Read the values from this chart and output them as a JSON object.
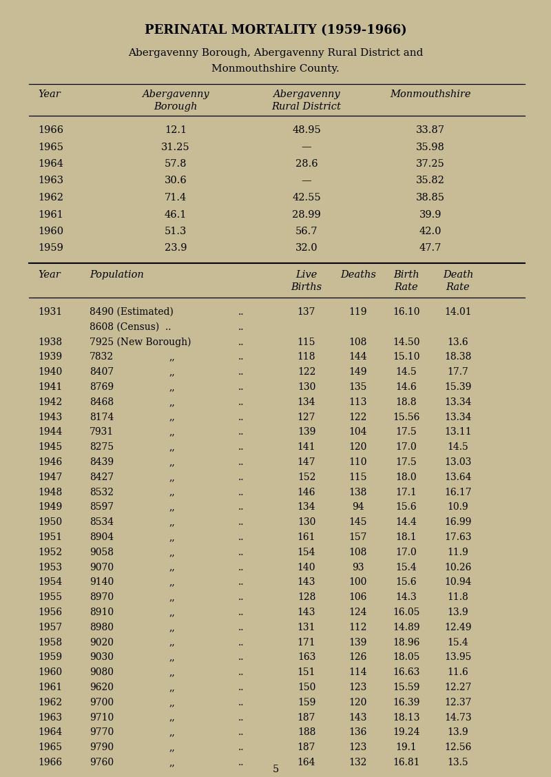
{
  "title": "PERINATAL MORTALITY (1959-1966)",
  "subtitle1": "Abergavenny Borough, Abergavenny Rural District and",
  "subtitle2": "Monmouthshire County.",
  "bg_color": "#c8bc96",
  "table1_rows": [
    [
      "1966",
      "12.1",
      "48.95",
      "33.87"
    ],
    [
      "1965",
      "31.25",
      "—",
      "35.98"
    ],
    [
      "1964",
      "57.8",
      "28.6",
      "37.25"
    ],
    [
      "1963",
      "30.6",
      "—",
      "35.82"
    ],
    [
      "1962",
      "71.4",
      "42.55",
      "38.85"
    ],
    [
      "1961",
      "46.1",
      "28.99",
      "39.9"
    ],
    [
      "1960",
      "51.3",
      "56.7",
      "42.0"
    ],
    [
      "1959",
      "23.9",
      "32.0",
      "47.7"
    ]
  ],
  "table2_rows": [
    [
      "1931",
      "8490 (Estimated)",
      "  ..",
      "137",
      "119",
      "16.10",
      "14.01"
    ],
    [
      "",
      "8608 (Census)  ..",
      "  ..",
      "",
      "",
      "",
      ""
    ],
    [
      "1938",
      "7925 (New Borough)",
      "  ..",
      "115",
      "108",
      "14.50",
      "13.6"
    ],
    [
      "1939",
      "7832",
      "  ..",
      "118",
      "144",
      "15.10",
      "18.38"
    ],
    [
      "1940",
      "8407",
      "  ..",
      "122",
      "149",
      "14.5",
      "17.7"
    ],
    [
      "1941",
      "8769",
      "  ..",
      "130",
      "135",
      "14.6",
      "15.39"
    ],
    [
      "1942",
      "8468",
      "  ..",
      "134",
      "113",
      "18.8",
      "13.34"
    ],
    [
      "1943",
      "8174",
      "  ..",
      "127",
      "122",
      "15.56",
      "13.34"
    ],
    [
      "1944",
      "7931",
      "  ..",
      "139",
      "104",
      "17.5",
      "13.11"
    ],
    [
      "1945",
      "8275",
      "  ..",
      "141",
      "120",
      "17.0",
      "14.5"
    ],
    [
      "1946",
      "8439",
      "  ..",
      "147",
      "110",
      "17.5",
      "13.03"
    ],
    [
      "1947",
      "8427",
      "  ..",
      "152",
      "115",
      "18.0",
      "13.64"
    ],
    [
      "1948",
      "8532",
      "  ..",
      "146",
      "138",
      "17.1",
      "16.17"
    ],
    [
      "1949",
      "8597",
      "  ..",
      "134",
      "94",
      "15.6",
      "10.9"
    ],
    [
      "1950",
      "8534",
      "  ..",
      "130",
      "145",
      "14.4",
      "16.99"
    ],
    [
      "1951",
      "8904",
      "  ..",
      "161",
      "157",
      "18.1",
      "17.63"
    ],
    [
      "1952",
      "9058",
      "  ..",
      "154",
      "108",
      "17.0",
      "11.9"
    ],
    [
      "1953",
      "9070",
      "  ..",
      "140",
      "93",
      "15.4",
      "10.26"
    ],
    [
      "1954",
      "9140",
      "  ..",
      "143",
      "100",
      "15.6",
      "10.94"
    ],
    [
      "1955",
      "8970",
      "  ..",
      "128",
      "106",
      "14.3",
      "11.8"
    ],
    [
      "1956",
      "8910",
      "  ..",
      "143",
      "124",
      "16.05",
      "13.9"
    ],
    [
      "1957",
      "8980",
      "  ..",
      "131",
      "112",
      "14.89",
      "12.49"
    ],
    [
      "1958",
      "9020",
      "  ..",
      "171",
      "139",
      "18.96",
      "15.4"
    ],
    [
      "1959",
      "9030",
      "  ..",
      "163",
      "126",
      "18.05",
      "13.95"
    ],
    [
      "1960",
      "9080",
      "  ..",
      "151",
      "114",
      "16.63",
      "11.6"
    ],
    [
      "1961",
      "9620",
      "  ..",
      "150",
      "123",
      "15.59",
      "12.27"
    ],
    [
      "1962",
      "9700",
      "  ..",
      "159",
      "120",
      "16.39",
      "12.37"
    ],
    [
      "1963",
      "9710",
      "  ..",
      "187",
      "143",
      "18.13",
      "14.73"
    ],
    [
      "1964",
      "9770",
      "  ..",
      "188",
      "136",
      "19.24",
      "13.9"
    ],
    [
      "1965",
      "9790",
      "  ..",
      "187",
      "123",
      "19.1",
      "12.56"
    ],
    [
      "1966",
      "9760",
      "  ..",
      "164",
      "132",
      "16.81",
      "13.5"
    ]
  ],
  "page_number": "5"
}
